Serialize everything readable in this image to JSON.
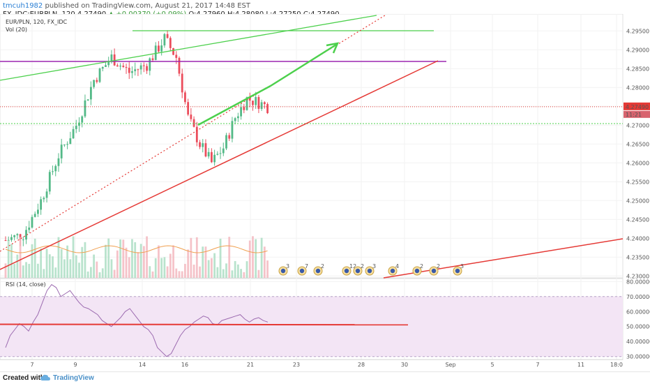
{
  "header": {
    "author": "tmcuh1982",
    "published_text": " published on TradingView.com, August 21, 2017 14:48 EST",
    "symbol": "FX_IDC:EURPLN, 120 ",
    "last": "4.27490",
    "change": " ▲ +0.00370 (+0.09%) ",
    "ohlc": "O:4.27960 H:4.28080 L:4.27250 C:4.27490"
  },
  "footer": {
    "created_with": "Created with",
    "brand": "TradingView"
  },
  "chart_data": [
    {
      "type": "candlestick",
      "title": "EUR/PLN, 120, FX_IDC",
      "volume_label": "Vol (20)",
      "price_label": "4.27490",
      "countdown_label": "11:21",
      "x_ticks": [
        "7",
        "9",
        "14",
        "16",
        "21",
        "23",
        "28",
        "30",
        "Sep",
        "5",
        "7",
        "11",
        "18:0"
      ],
      "y_ticks": [
        4.23,
        4.235,
        4.24,
        4.245,
        4.25,
        4.255,
        4.26,
        4.265,
        4.27,
        4.275,
        4.28,
        4.285,
        4.29,
        4.295
      ],
      "ylim": [
        4.2295,
        4.2995
      ],
      "last_price": 4.2749,
      "event_markers": [
        3,
        7,
        2,
        12,
        2,
        3,
        4,
        2,
        2,
        3
      ],
      "colors": {
        "up": "#53b987",
        "down": "#eb4d5c",
        "green_line": "#4cd04c",
        "red_line": "#e53935",
        "purple_line": "#9c27b0",
        "volume_ma": "#f0a050",
        "rsi_line": "#9c6bb0",
        "rsi_band": "#f3e5f5"
      }
    },
    {
      "type": "line",
      "title": "RSI (14, close)",
      "y_ticks": [
        30,
        40,
        50,
        60,
        70,
        80
      ],
      "ylim": [
        28,
        82
      ],
      "band": [
        30,
        70
      ],
      "values": [
        36,
        44,
        48,
        52,
        50,
        47,
        53,
        58,
        66,
        74,
        78,
        76,
        70,
        72,
        74,
        70,
        66,
        63,
        62,
        60,
        58,
        54,
        52,
        50,
        53,
        56,
        60,
        62,
        58,
        54,
        50,
        48,
        44,
        36,
        33,
        30,
        32,
        38,
        44,
        48,
        50,
        53,
        55,
        57,
        56,
        52,
        51,
        54,
        55,
        56,
        57,
        58,
        55,
        53,
        55,
        56,
        54,
        53
      ]
    }
  ]
}
